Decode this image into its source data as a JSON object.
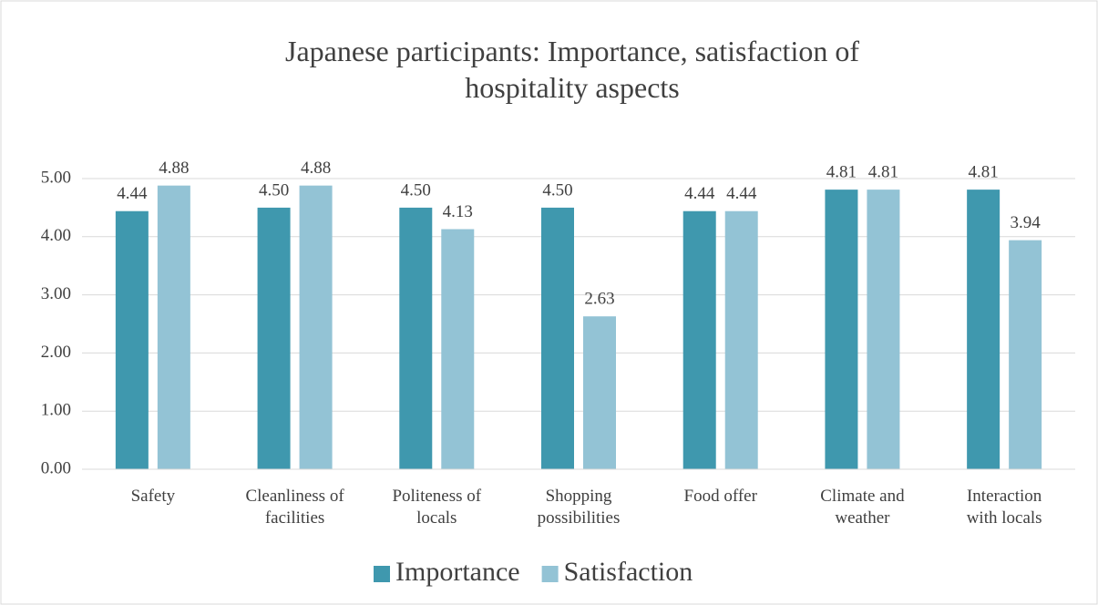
{
  "chart_data": {
    "type": "bar",
    "title": "Japanese participants: Importance, satisfaction of hospitality aspects",
    "categories": [
      "Safety",
      "Cleanliness of facilities",
      "Politeness of locals",
      "Shopping possibilities",
      "Food offer",
      "Climate and weather",
      "Interaction with locals"
    ],
    "series": [
      {
        "name": "Importance",
        "color": "#3f98ae",
        "values": [
          4.44,
          4.5,
          4.5,
          4.5,
          4.44,
          4.81,
          4.81
        ],
        "value_labels": [
          "4.44",
          "4.50",
          "4.50",
          "4.50",
          "4.44",
          "4.81",
          "4.81"
        ]
      },
      {
        "name": "Satisfaction",
        "color": "#93c3d5",
        "values": [
          4.88,
          4.88,
          4.13,
          2.63,
          4.44,
          4.81,
          3.94
        ],
        "value_labels": [
          "4.88",
          "4.88",
          "4.13",
          "2.63",
          "4.44",
          "4.81",
          "3.94"
        ]
      }
    ],
    "ylim": [
      0,
      5
    ],
    "yticks": [
      {
        "value": 0,
        "label": "0.00"
      },
      {
        "value": 1,
        "label": "1.00"
      },
      {
        "value": 2,
        "label": "2.00"
      },
      {
        "value": 3,
        "label": "3.00"
      },
      {
        "value": 4,
        "label": "4.00"
      },
      {
        "value": 5,
        "label": "5.00"
      }
    ],
    "grid": true,
    "legend": "bottom"
  }
}
